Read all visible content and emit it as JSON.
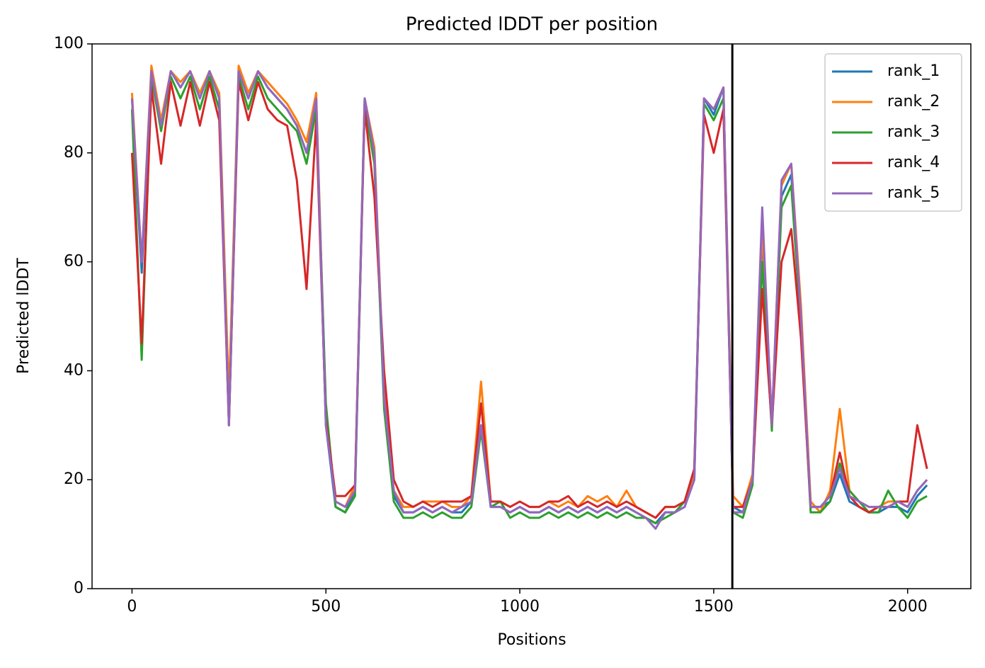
{
  "chart_data": {
    "type": "line",
    "title": "Predicted lDDT per position",
    "xlabel": "Positions",
    "ylabel": "Predicted lDDT",
    "xlim": [
      -103,
      2163
    ],
    "ylim": [
      0,
      100
    ],
    "xticks": [
      0,
      500,
      1000,
      1500,
      2000
    ],
    "yticks": [
      0,
      20,
      40,
      60,
      80,
      100
    ],
    "vline": 1548,
    "legend": "upper right",
    "x": [
      0,
      25,
      50,
      75,
      100,
      125,
      150,
      175,
      200,
      225,
      250,
      275,
      300,
      325,
      350,
      375,
      400,
      425,
      450,
      475,
      500,
      525,
      550,
      575,
      600,
      625,
      650,
      675,
      700,
      725,
      750,
      775,
      800,
      825,
      850,
      875,
      900,
      925,
      950,
      975,
      1000,
      1025,
      1050,
      1075,
      1100,
      1125,
      1150,
      1175,
      1200,
      1225,
      1250,
      1275,
      1300,
      1325,
      1350,
      1375,
      1400,
      1425,
      1450,
      1475,
      1500,
      1525,
      1550,
      1575,
      1600,
      1625,
      1650,
      1675,
      1700,
      1725,
      1750,
      1775,
      1800,
      1825,
      1850,
      1875,
      1900,
      1925,
      1950,
      1975,
      2000,
      2025,
      2050
    ],
    "series": [
      {
        "name": "rank_1",
        "color": "#1f77b4",
        "values": [
          90,
          58,
          95,
          85,
          95,
          92,
          95,
          90,
          95,
          90,
          31,
          95,
          90,
          95,
          92,
          90,
          88,
          85,
          80,
          90,
          30,
          15,
          14,
          18,
          90,
          80,
          34,
          17,
          14,
          14,
          15,
          14,
          15,
          14,
          14,
          16,
          30,
          15,
          15,
          14,
          15,
          14,
          14,
          15,
          14,
          15,
          14,
          15,
          14,
          15,
          14,
          15,
          14,
          13,
          12,
          14,
          14,
          15,
          20,
          90,
          87,
          92,
          15,
          14,
          20,
          65,
          30,
          72,
          76,
          50,
          15,
          15,
          16,
          21,
          16,
          15,
          14,
          14,
          15,
          15,
          14,
          17,
          19
        ]
      },
      {
        "name": "rank_2",
        "color": "#ff7f0e",
        "values": [
          91,
          60,
          96,
          86,
          95,
          93,
          95,
          91,
          95,
          91,
          35,
          96,
          91,
          95,
          93,
          91,
          89,
          86,
          82,
          91,
          32,
          16,
          15,
          19,
          90,
          81,
          36,
          18,
          15,
          15,
          16,
          16,
          16,
          15,
          15,
          17,
          38,
          16,
          16,
          15,
          16,
          15,
          15,
          16,
          15,
          16,
          15,
          17,
          16,
          17,
          15,
          18,
          15,
          14,
          13,
          15,
          15,
          16,
          21,
          90,
          88,
          92,
          17,
          15,
          21,
          66,
          31,
          74,
          78,
          52,
          16,
          14,
          18,
          33,
          18,
          16,
          15,
          15,
          16,
          16,
          15,
          18,
          20
        ]
      },
      {
        "name": "rank_3",
        "color": "#2ca02c",
        "values": [
          88,
          42,
          94,
          84,
          94,
          90,
          94,
          88,
          94,
          88,
          30,
          94,
          88,
          94,
          90,
          88,
          86,
          84,
          78,
          88,
          34,
          15,
          14,
          17,
          89,
          78,
          33,
          16,
          13,
          13,
          14,
          13,
          14,
          13,
          13,
          15,
          29,
          15,
          16,
          13,
          14,
          13,
          13,
          14,
          13,
          14,
          13,
          14,
          13,
          14,
          13,
          14,
          13,
          13,
          12,
          13,
          14,
          16,
          22,
          89,
          86,
          90,
          14,
          13,
          19,
          60,
          29,
          70,
          74,
          48,
          14,
          14,
          16,
          23,
          18,
          16,
          14,
          14,
          18,
          15,
          13,
          16,
          17
        ]
      },
      {
        "name": "rank_4",
        "color": "#d62728",
        "values": [
          80,
          45,
          92,
          78,
          93,
          85,
          93,
          85,
          93,
          86,
          30,
          93,
          86,
          93,
          88,
          86,
          85,
          75,
          55,
          86,
          31,
          17,
          17,
          19,
          88,
          72,
          40,
          20,
          16,
          15,
          16,
          15,
          16,
          16,
          16,
          17,
          34,
          16,
          16,
          15,
          16,
          15,
          15,
          16,
          16,
          17,
          15,
          16,
          15,
          16,
          15,
          16,
          15,
          14,
          13,
          15,
          15,
          16,
          22,
          87,
          80,
          88,
          15,
          15,
          20,
          55,
          30,
          60,
          66,
          46,
          15,
          15,
          17,
          25,
          17,
          15,
          14,
          15,
          15,
          16,
          16,
          30,
          22
        ]
      },
      {
        "name": "rank_5",
        "color": "#9467bd",
        "values": [
          90,
          60,
          95,
          85,
          95,
          92,
          95,
          90,
          95,
          90,
          30,
          95,
          90,
          95,
          92,
          90,
          88,
          85,
          80,
          90,
          30,
          16,
          15,
          18,
          90,
          80,
          35,
          18,
          14,
          14,
          15,
          14,
          15,
          14,
          15,
          16,
          30,
          15,
          15,
          14,
          15,
          14,
          14,
          15,
          14,
          15,
          14,
          15,
          14,
          15,
          14,
          15,
          14,
          13,
          11,
          14,
          14,
          15,
          20,
          90,
          88,
          92,
          14,
          14,
          20,
          70,
          30,
          75,
          78,
          50,
          15,
          15,
          17,
          22,
          17,
          16,
          15,
          15,
          15,
          16,
          15,
          18,
          20
        ]
      }
    ]
  }
}
